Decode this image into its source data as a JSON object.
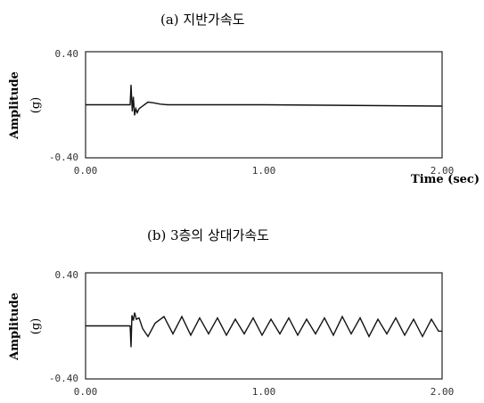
{
  "chart_data": [
    {
      "type": "line",
      "title": "(a)  지반가속도",
      "ylabel": "Amplitude",
      "yunit": "(g)",
      "xlabel": "Time (sec)",
      "xlim": [
        0,
        2
      ],
      "ylim": [
        -0.4,
        0.4
      ],
      "xticklabels": [
        "0.00",
        "1.00",
        "2.00"
      ],
      "yticklabels": [
        "0.40",
        "-0.40"
      ],
      "grid": false,
      "series": [
        {
          "x": [
            0,
            0.25,
            0.255,
            0.262,
            0.268,
            0.275,
            0.282,
            0.29,
            0.3,
            0.32,
            0.35,
            0.38,
            0.42,
            0.46,
            0.5,
            0.7,
            1.0,
            1.5,
            2.0
          ],
          "y": [
            0.0,
            0.0,
            0.15,
            -0.05,
            0.06,
            -0.08,
            -0.03,
            -0.06,
            -0.03,
            -0.01,
            0.02,
            0.015,
            0.005,
            0.0,
            0.0,
            0.0,
            0.0,
            -0.005,
            -0.01
          ]
        }
      ]
    },
    {
      "type": "line",
      "title": "(b)  3층의  상대가속도",
      "ylabel": "Amplitude",
      "yunit": "(g)",
      "xlim": [
        0,
        2
      ],
      "ylim": [
        -0.4,
        0.4
      ],
      "xticklabels": [
        "0.00",
        "1.00",
        "2.00"
      ],
      "yticklabels": [
        "0.40",
        "-0.40"
      ],
      "grid": false,
      "series": [
        {
          "x": [
            0,
            0.25,
            0.255,
            0.26,
            0.268,
            0.275,
            0.285,
            0.3,
            0.32,
            0.35,
            0.39,
            0.44,
            0.49,
            0.54,
            0.59,
            0.64,
            0.69,
            0.74,
            0.79,
            0.84,
            0.89,
            0.94,
            0.99,
            1.04,
            1.09,
            1.14,
            1.19,
            1.24,
            1.29,
            1.34,
            1.39,
            1.44,
            1.49,
            1.54,
            1.59,
            1.64,
            1.69,
            1.74,
            1.79,
            1.84,
            1.89,
            1.94,
            1.98,
            2.0
          ],
          "y": [
            0.0,
            0.0,
            -0.16,
            0.08,
            0.04,
            0.1,
            0.05,
            0.06,
            -0.02,
            -0.08,
            0.02,
            0.07,
            -0.06,
            0.07,
            -0.07,
            0.06,
            -0.06,
            0.06,
            -0.07,
            0.05,
            -0.06,
            0.06,
            -0.07,
            0.05,
            -0.06,
            0.06,
            -0.07,
            0.05,
            -0.06,
            0.06,
            -0.07,
            0.07,
            -0.06,
            0.06,
            -0.08,
            0.05,
            -0.06,
            0.06,
            -0.07,
            0.05,
            -0.08,
            0.05,
            -0.04,
            -0.04
          ]
        }
      ]
    }
  ]
}
